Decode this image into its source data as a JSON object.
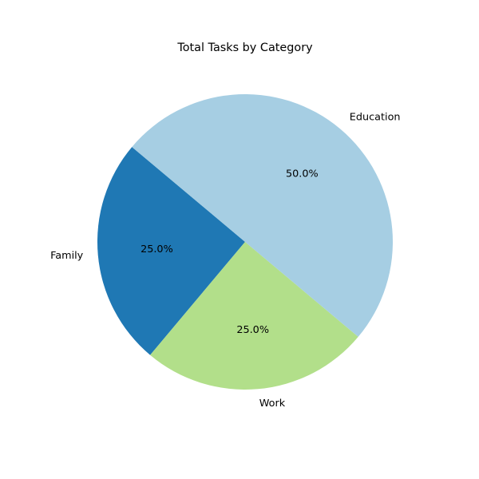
{
  "chart_data": {
    "type": "pie",
    "title": "Total Tasks by Category",
    "start_angle_deg": 140,
    "direction": "counterclockwise",
    "slices": [
      {
        "label": "Family",
        "value": 25.0,
        "pct_label": "25.0%",
        "color": "#1f78b4"
      },
      {
        "label": "Work",
        "value": 25.0,
        "pct_label": "25.0%",
        "color": "#b2df8a"
      },
      {
        "label": "Education",
        "value": 50.0,
        "pct_label": "50.0%",
        "color": "#a6cee3"
      }
    ]
  }
}
